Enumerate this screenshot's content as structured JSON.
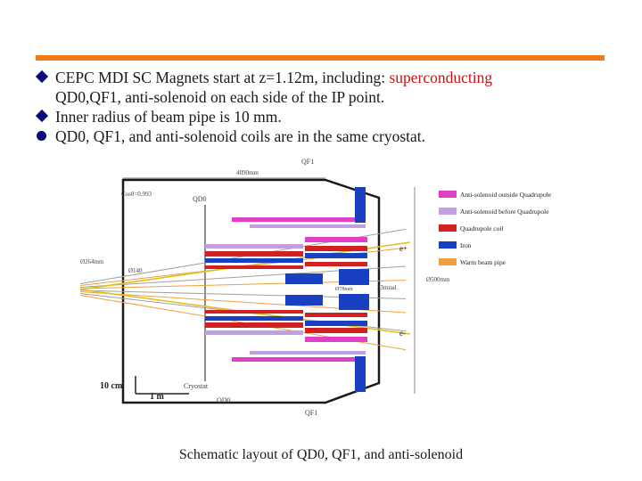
{
  "colors": {
    "accent": "#f07a1a",
    "bullet": "#0a0a7a",
    "highlight": "#d01010",
    "text": "#1a1a1a",
    "pink": "#e040c8",
    "lilac": "#c0a0e0",
    "red": "#d02020",
    "blue": "#1840c0",
    "orange": "#f0a040",
    "cryostat": "#1a1a1a"
  },
  "bullets": [
    {
      "marker": "diamond",
      "text_pre": "CEPC MDI SC Magnets start at z=1.12m, including: ",
      "text_hl": "superconducting",
      "text_post": "QD0,QF1, anti-solenoid on each side of the IP point."
    },
    {
      "marker": "diamond",
      "text_pre": "Inner radius of beam pipe is 10 mm.",
      "text_hl": "",
      "text_post": ""
    },
    {
      "marker": "circle",
      "text_pre": "QD0, QF1, and anti-solenoid coils are in the same cryostat.",
      "text_hl": "",
      "text_post": ""
    }
  ],
  "figure": {
    "labels": {
      "qf1_top": "QF1",
      "dim_top": "4890mm",
      "cos": "Cosθ=0.993",
      "qd0_top": "QD0",
      "d264": "Ø264mm",
      "d140": "Ø140",
      "d500": "Ø500mm",
      "d78": "Ø78mm",
      "mrad": "33mrad",
      "eplus": "e+",
      "eminus": "e-",
      "cryostat": "Cryostat",
      "qd0_bottom": "QD0",
      "qf1_bottom": "QF1",
      "scale_10cm": "10 cm",
      "scale_1m": "1 m"
    },
    "legend": [
      {
        "label": "Anti-solenoid outside Quadrupole",
        "color": "#e040c8"
      },
      {
        "label": "Anti-solenoid before Quadrupole",
        "color": "#c0a0e0"
      },
      {
        "label": "Quadrupole coil",
        "color": "#d02020"
      },
      {
        "label": "Iron",
        "color": "#1840c0"
      },
      {
        "label": "Warm beam pipe",
        "color": "#f0a040"
      }
    ]
  },
  "caption": "Schematic layout of QD0, QF1, and anti-solenoid"
}
